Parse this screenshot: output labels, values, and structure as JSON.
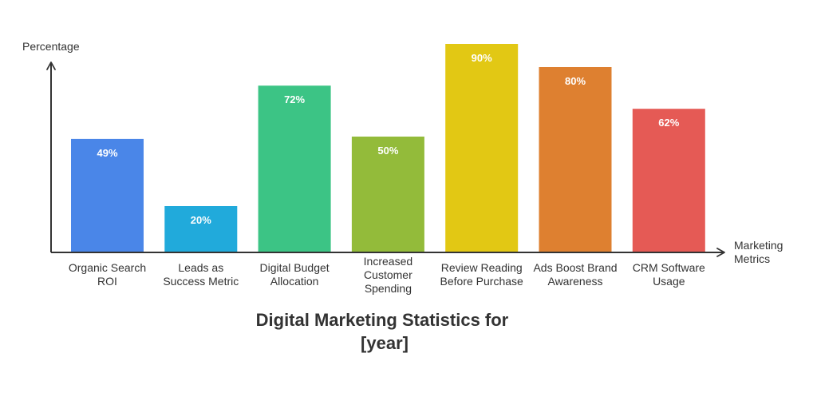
{
  "chart_data": {
    "type": "bar",
    "title": [
      "Digital Marketing Statistics for",
      "[year]"
    ],
    "ylabel": "Percentage",
    "xlabel": [
      "Marketing",
      "Metrics"
    ],
    "ylim": [
      0,
      100
    ],
    "grid": false,
    "categories": [
      [
        "Organic Search",
        "ROI"
      ],
      [
        "Leads as",
        "Success Metric"
      ],
      [
        "Digital Budget",
        "Allocation"
      ],
      [
        "Increased",
        "Customer",
        "Spending"
      ],
      [
        "Review Reading",
        "Before Purchase"
      ],
      [
        "Ads Boost Brand",
        "Awareness"
      ],
      [
        "CRM Software",
        "Usage"
      ]
    ],
    "values": [
      49,
      20,
      72,
      50,
      90,
      80,
      62
    ],
    "value_labels": [
      "49%",
      "20%",
      "72%",
      "50%",
      "90%",
      "80%",
      "62%"
    ],
    "colors": [
      "#4a86e8",
      "#21aadb",
      "#3cc485",
      "#93bb3a",
      "#e2c814",
      "#de8030",
      "#e55a55"
    ]
  }
}
